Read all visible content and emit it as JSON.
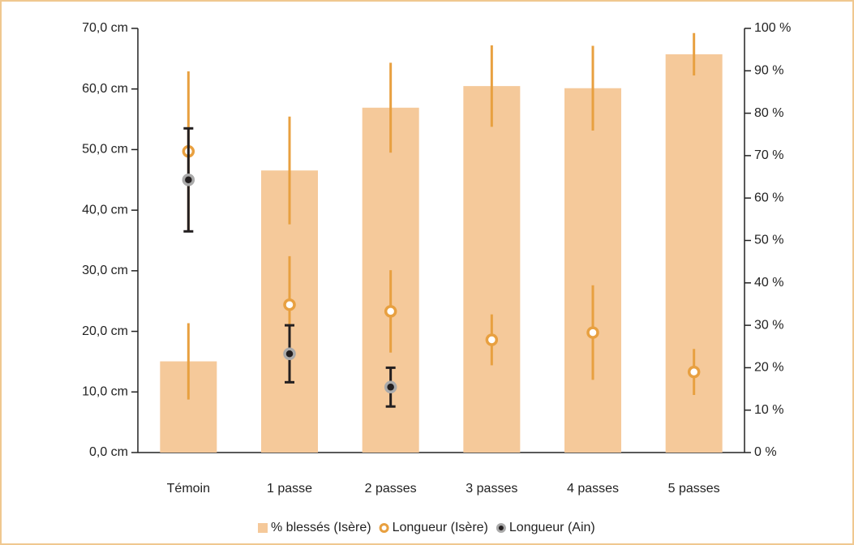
{
  "chart_data": {
    "type": "bar_errorbar_combo",
    "categories": [
      "Témoin",
      "1 passe",
      "2 passes",
      "3 passes",
      "4 passes",
      "5 passes"
    ],
    "series": [
      {
        "name": "% blessés (Isère)",
        "kind": "bar",
        "axis": "y2",
        "color": "#f5c99a",
        "errcolor": "#e8a040",
        "values": [
          21.5,
          66.5,
          81.3,
          86.4,
          85.9,
          93.9
        ],
        "errors": [
          9,
          12.7,
          10.6,
          9.6,
          10,
          5
        ]
      },
      {
        "name": "Longueur (Isère)",
        "kind": "point",
        "axis": "y",
        "color": "#e8a040",
        "errcolor": "#e8a040",
        "values": [
          49.7,
          24.4,
          23.3,
          18.6,
          19.8,
          13.3
        ],
        "errors": [
          13.2,
          8,
          6.8,
          4.2,
          7.8,
          3.8
        ]
      },
      {
        "name": "Longueur (Ain)",
        "kind": "point",
        "axis": "y",
        "color": "#231f20",
        "errcolor": "#231f20",
        "values": [
          45,
          16.3,
          10.8,
          null,
          null,
          null
        ],
        "errors": [
          8.5,
          4.7,
          3.2,
          null,
          null,
          null
        ]
      }
    ],
    "ylim": [
      0,
      70
    ],
    "yticks": [
      {
        "value": 0,
        "label": "0,0 cm"
      },
      {
        "value": 10,
        "label": "10,0 cm"
      },
      {
        "value": 20,
        "label": "20,0 cm"
      },
      {
        "value": 30,
        "label": "30,0 cm"
      },
      {
        "value": 40,
        "label": "40,0 cm"
      },
      {
        "value": 50,
        "label": "50,0 cm"
      },
      {
        "value": 60,
        "label": "60,0 cm"
      },
      {
        "value": 70,
        "label": "70,0 cm"
      }
    ],
    "y2lim": [
      0,
      100
    ],
    "y2ticks": [
      {
        "value": 0,
        "label": "0 %"
      },
      {
        "value": 10,
        "label": "10 %"
      },
      {
        "value": 20,
        "label": "20 %"
      },
      {
        "value": 30,
        "label": "30 %"
      },
      {
        "value": 40,
        "label": "40 %"
      },
      {
        "value": 50,
        "label": "50 %"
      },
      {
        "value": 60,
        "label": "60 %"
      },
      {
        "value": 70,
        "label": "70 %"
      },
      {
        "value": 80,
        "label": "80 %"
      },
      {
        "value": 90,
        "label": "90 %"
      },
      {
        "value": 100,
        "label": "100 %"
      }
    ],
    "legend": "bottom"
  }
}
